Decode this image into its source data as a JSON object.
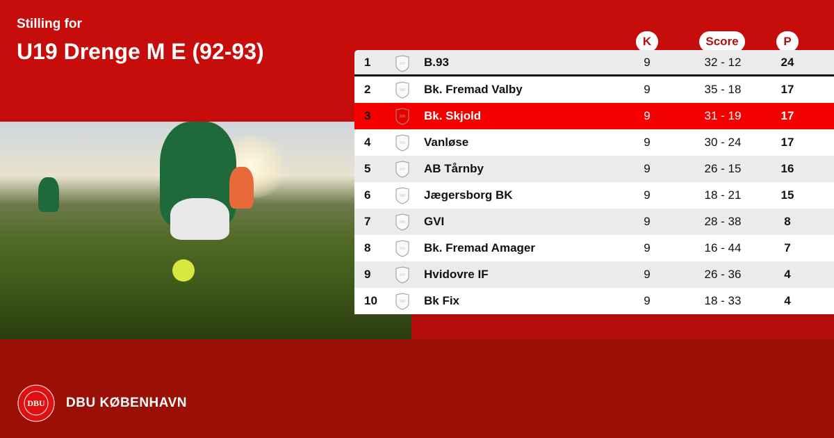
{
  "header": {
    "subtitle": "Stilling for",
    "title": "U19 Drenge M E (92-93)"
  },
  "columns": {
    "k": "K",
    "score": "Score",
    "p": "P"
  },
  "highlight_color": "#f40000",
  "rows": [
    {
      "pos": "1",
      "team": "B.93",
      "k": "9",
      "score": "32 - 12",
      "p": "24"
    },
    {
      "pos": "2",
      "team": "Bk. Fremad Valby",
      "k": "9",
      "score": "35 - 18",
      "p": "17"
    },
    {
      "pos": "3",
      "team": "Bk. Skjold",
      "k": "9",
      "score": "31 - 19",
      "p": "17"
    },
    {
      "pos": "4",
      "team": "Vanløse",
      "k": "9",
      "score": "30 - 24",
      "p": "17"
    },
    {
      "pos": "5",
      "team": "AB Tårnby",
      "k": "9",
      "score": "26 - 15",
      "p": "16"
    },
    {
      "pos": "6",
      "team": "Jægersborg BK",
      "k": "9",
      "score": "18 - 21",
      "p": "15"
    },
    {
      "pos": "7",
      "team": "GVI",
      "k": "9",
      "score": "28 - 38",
      "p": "8"
    },
    {
      "pos": "8",
      "team": "Bk. Fremad Amager",
      "k": "9",
      "score": "16 - 44",
      "p": "7"
    },
    {
      "pos": "9",
      "team": "Hvidovre IF",
      "k": "9",
      "score": "26 - 36",
      "p": "4"
    },
    {
      "pos": "10",
      "team": "Bk Fix",
      "k": "9",
      "score": "18 - 33",
      "p": "4"
    }
  ],
  "footer": {
    "brand": "DBU KØBENHAVN",
    "logo_text": "DANSK BOLDSPIL-UNION 1889 DBU"
  }
}
